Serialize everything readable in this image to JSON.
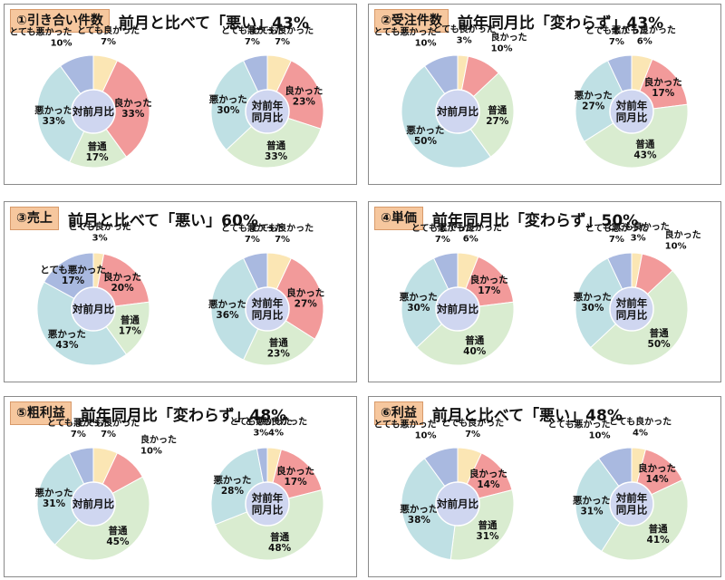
{
  "colors": {
    "とても良かった": "#fbe6b4",
    "良かった": "#f29a9a",
    "普通": "#d9ecd0",
    "悪かった": "#bfe0e4",
    "とても悪かった": "#a9b9e0",
    "center": "#cfd6f0",
    "tag_bg": "#f6c79e"
  },
  "panels": [
    {
      "tag": "①引き合い件数",
      "headline": "前月と比べて「悪い」43%",
      "charts": [
        {
          "center": [
            "対前月比"
          ],
          "slices": [
            {
              "name": "とても良かった",
              "value": 7
            },
            {
              "name": "良かった",
              "value": 33
            },
            {
              "name": "普通",
              "value": 17
            },
            {
              "name": "悪かった",
              "value": 33
            },
            {
              "name": "とても悪かった",
              "value": 10
            }
          ]
        },
        {
          "center": [
            "対前年",
            "同月比"
          ],
          "slices": [
            {
              "name": "とても良かった",
              "value": 7
            },
            {
              "name": "良かった",
              "value": 23
            },
            {
              "name": "普通",
              "value": 33
            },
            {
              "name": "悪かった",
              "value": 30
            },
            {
              "name": "とても悪かった",
              "value": 7
            }
          ]
        }
      ]
    },
    {
      "tag": "②受注件数",
      "headline": "前年同月比「変わらず」43%",
      "charts": [
        {
          "center": [
            "対前月比"
          ],
          "slices": [
            {
              "name": "とても良かった",
              "value": 3
            },
            {
              "name": "良かった",
              "value": 10
            },
            {
              "name": "普通",
              "value": 27
            },
            {
              "name": "悪かった",
              "value": 50
            },
            {
              "name": "とても悪かった",
              "value": 10
            }
          ]
        },
        {
          "center": [
            "対前年",
            "同月比"
          ],
          "slices": [
            {
              "name": "とても良かった",
              "value": 6
            },
            {
              "name": "良かった",
              "value": 17
            },
            {
              "name": "普通",
              "value": 43
            },
            {
              "name": "悪かった",
              "value": 27
            },
            {
              "name": "とても悪かった",
              "value": 7
            }
          ]
        }
      ]
    },
    {
      "tag": "③売上",
      "headline": "前月と比べて「悪い」60%",
      "charts": [
        {
          "center": [
            "対前月比"
          ],
          "slices": [
            {
              "name": "とても良かった",
              "value": 3
            },
            {
              "name": "良かった",
              "value": 20
            },
            {
              "name": "普通",
              "value": 17
            },
            {
              "name": "悪かった",
              "value": 43
            },
            {
              "name": "とても悪かった",
              "value": 17
            }
          ]
        },
        {
          "center": [
            "対前年",
            "同月比"
          ],
          "slices": [
            {
              "name": "とても良かった",
              "value": 7
            },
            {
              "name": "良かった",
              "value": 27
            },
            {
              "name": "普通",
              "value": 23
            },
            {
              "name": "悪かった",
              "value": 36
            },
            {
              "name": "とても悪かった",
              "value": 7
            }
          ]
        }
      ]
    },
    {
      "tag": "④単価",
      "headline": "前年同月比「変わらず」50%",
      "charts": [
        {
          "center": [
            "対前月比"
          ],
          "slices": [
            {
              "name": "とても良かった",
              "value": 6
            },
            {
              "name": "良かった",
              "value": 17
            },
            {
              "name": "普通",
              "value": 40
            },
            {
              "name": "悪かった",
              "value": 30
            },
            {
              "name": "とても悪かった",
              "value": 7
            }
          ]
        },
        {
          "center": [
            "対前年",
            "同月比"
          ],
          "slices": [
            {
              "name": "とても良かった",
              "value": 3
            },
            {
              "name": "良かった",
              "value": 10
            },
            {
              "name": "普通",
              "value": 50
            },
            {
              "name": "悪かった",
              "value": 30
            },
            {
              "name": "とても悪かった",
              "value": 7
            }
          ]
        }
      ]
    },
    {
      "tag": "⑤粗利益",
      "headline": "前年同月比「変わらず」48%",
      "charts": [
        {
          "center": [
            "対前月比"
          ],
          "slices": [
            {
              "name": "とても良かった",
              "value": 7
            },
            {
              "name": "良かった",
              "value": 10
            },
            {
              "name": "普通",
              "value": 45
            },
            {
              "name": "悪かった",
              "value": 31
            },
            {
              "name": "とても悪かった",
              "value": 7
            }
          ]
        },
        {
          "center": [
            "対前年",
            "同月比"
          ],
          "slices": [
            {
              "name": "とても良かった",
              "value": 4
            },
            {
              "name": "良かった",
              "value": 17
            },
            {
              "name": "普通",
              "value": 48
            },
            {
              "name": "悪かった",
              "value": 28
            },
            {
              "name": "とても悪かった",
              "value": 3
            }
          ]
        }
      ]
    },
    {
      "tag": "⑥利益",
      "headline": "前月と比べて「悪い」48%",
      "charts": [
        {
          "center": [
            "対前月比"
          ],
          "slices": [
            {
              "name": "とても良かった",
              "value": 7
            },
            {
              "name": "良かった",
              "value": 14
            },
            {
              "name": "普通",
              "value": 31
            },
            {
              "name": "悪かった",
              "value": 38
            },
            {
              "name": "とても悪かった",
              "value": 10
            }
          ]
        },
        {
          "center": [
            "対前年",
            "同月比"
          ],
          "slices": [
            {
              "name": "とても良かった",
              "value": 4
            },
            {
              "name": "良かった",
              "value": 14
            },
            {
              "name": "普通",
              "value": 41
            },
            {
              "name": "悪かった",
              "value": 31
            },
            {
              "name": "とても悪かった",
              "value": 10
            }
          ]
        }
      ]
    }
  ],
  "chart_data": {
    "type": "pie",
    "categories": [
      "とても良かった",
      "良かった",
      "普通",
      "悪かった",
      "とても悪かった"
    ],
    "unit": "%"
  }
}
